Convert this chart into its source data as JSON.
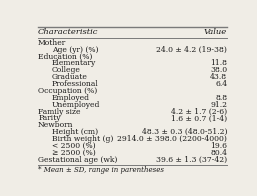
{
  "title_col1": "Characteristic",
  "title_col2": "Value",
  "rows": [
    [
      "Mother",
      "",
      false
    ],
    [
      "Age (yr) (%)",
      "24.0 ± 4.2 (19-38)",
      true
    ],
    [
      "Education (%)",
      "",
      false
    ],
    [
      "Elementary",
      "11.8",
      true
    ],
    [
      "College",
      "38.0",
      true
    ],
    [
      "Graduate",
      "43.8",
      true
    ],
    [
      "Professional",
      "6.4",
      true
    ],
    [
      "Occupation (%)",
      "",
      false
    ],
    [
      "Employed",
      "8.8",
      true
    ],
    [
      "Unemployed",
      "91.2",
      true
    ],
    [
      "Family size",
      "4.2 ± 1.7 (2-6)",
      false
    ],
    [
      "Parity",
      "1.6 ± 0.7 (1-4)",
      false
    ],
    [
      "Newborn",
      "",
      false
    ],
    [
      "Height (cm)",
      "48.3 ± 0.3 (48.0-51.2)",
      true
    ],
    [
      "Birth weight (g)",
      "2914.0 ± 398.0 (2200-4000)",
      true
    ],
    [
      "< 2500 (%)",
      "19.6",
      true
    ],
    [
      "≥ 2500 (%)",
      "80.4",
      true
    ],
    [
      "Gestational age (wk)",
      "39.6 ± 1.3 (37-42)",
      false
    ]
  ],
  "footnote": "* Mean ± SD, range in parentheses",
  "bg_color": "#f0ede6",
  "header_line_color": "#7a7a7a",
  "text_color": "#1a1a1a",
  "font_size": 5.5,
  "header_font_size": 6.0
}
